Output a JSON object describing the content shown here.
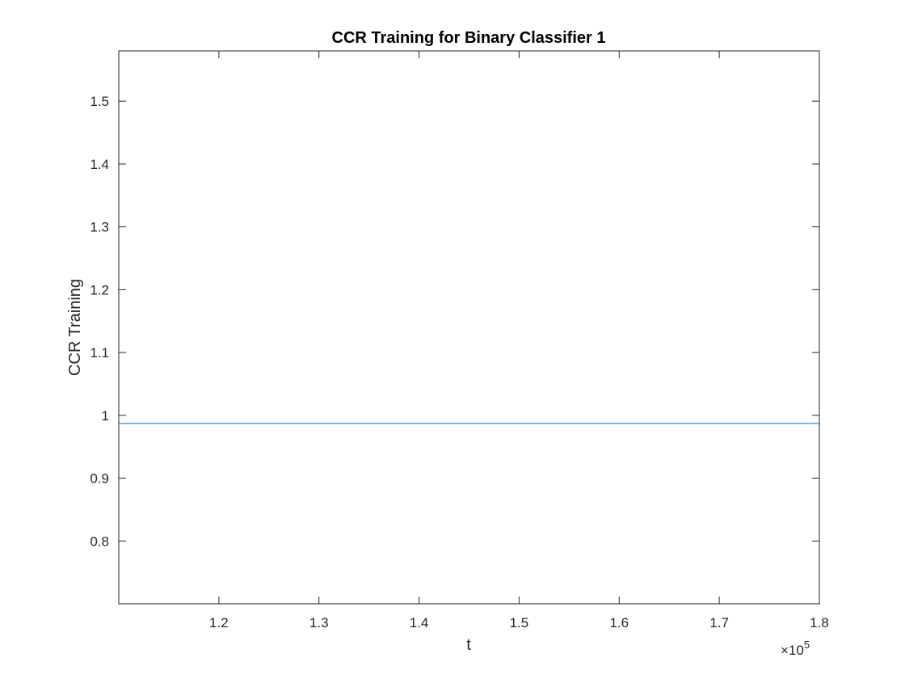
{
  "chart_data": {
    "type": "line",
    "title": "CCR Training for Binary Classifier 1",
    "xlabel": "t",
    "ylabel": "CCR Training",
    "x_exponent_label": "×10",
    "x_exponent_power": "5",
    "xlim": [
      1.1,
      1.8
    ],
    "ylim": [
      0.7,
      1.58
    ],
    "xticks": [
      1.2,
      1.3,
      1.4,
      1.5,
      1.6,
      1.7,
      1.8
    ],
    "xtick_labels": [
      "1.2",
      "1.3",
      "1.4",
      "1.5",
      "1.6",
      "1.7",
      "1.8"
    ],
    "yticks": [
      0.8,
      0.9,
      1.0,
      1.1,
      1.2,
      1.3,
      1.4,
      1.5
    ],
    "ytick_labels": [
      "0.8",
      "0.9",
      "1",
      "1.1",
      "1.2",
      "1.3",
      "1.4",
      "1.5"
    ],
    "grid": false,
    "box": true,
    "series": [
      {
        "color": "#0072BD",
        "x": [
          1.1,
          1.8
        ],
        "y": [
          0.987,
          0.987
        ]
      }
    ]
  }
}
